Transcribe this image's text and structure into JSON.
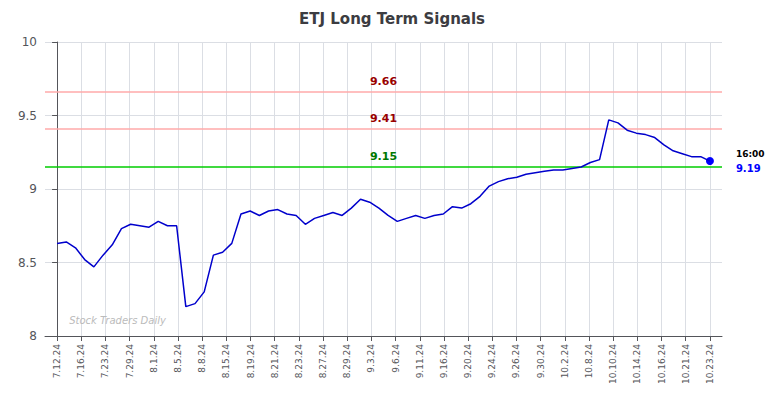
{
  "chart_data": {
    "type": "line",
    "title": "ETJ Long Term Signals",
    "color": "#0000cc",
    "grid": true,
    "x": [
      0,
      0.3803,
      0.7606,
      1.1408,
      1.5211,
      1.9014,
      2.2817,
      2.662,
      3.0423,
      3.4225,
      3.8028,
      4.1831,
      4.5634,
      4.9437,
      5.3239,
      5.7042,
      6.0845,
      6.4648,
      6.8451,
      7.2254,
      7.6056,
      7.9859,
      8.3662,
      8.7465,
      9.1268,
      9.507,
      9.8873,
      10.2676,
      10.6479,
      11.0282,
      11.4085,
      11.7887,
      12.169,
      12.5493,
      12.9296,
      13.3099,
      13.6901,
      14.0704,
      14.4507,
      14.831,
      15.2113,
      15.5915,
      15.9718,
      16.3521,
      16.7324,
      17.1127,
      17.493,
      17.8732,
      18.2535,
      18.6338,
      19.0141,
      19.3944,
      19.7746,
      20.1549,
      20.5352,
      20.9155,
      21.2958,
      21.6761,
      22.0563,
      22.4366,
      22.8169,
      23.1972,
      23.5775,
      23.9577,
      24.338,
      24.7183,
      25.0986,
      25.4789,
      25.8592,
      26.2394,
      26.6197,
      27
    ],
    "values": [
      8.63,
      8.64,
      8.6,
      8.52,
      8.47,
      8.55,
      8.62,
      8.73,
      8.76,
      8.75,
      8.74,
      8.78,
      8.75,
      8.75,
      8.2,
      8.22,
      8.3,
      8.55,
      8.57,
      8.63,
      8.83,
      8.85,
      8.82,
      8.85,
      8.86,
      8.83,
      8.82,
      8.76,
      8.8,
      8.82,
      8.84,
      8.82,
      8.87,
      8.93,
      8.91,
      8.87,
      8.82,
      8.78,
      8.8,
      8.82,
      8.8,
      8.82,
      8.83,
      8.88,
      8.87,
      8.9,
      8.95,
      9.02,
      9.05,
      9.07,
      9.08,
      9.1,
      9.11,
      9.12,
      9.13,
      9.13,
      9.14,
      9.15,
      9.18,
      9.2,
      9.47,
      9.45,
      9.4,
      9.38,
      9.37,
      9.35,
      9.3,
      9.26,
      9.24,
      9.22,
      9.22,
      9.19
    ],
    "xlim": [
      -0.5,
      27.5
    ],
    "xticks": [
      {
        "value": 0,
        "label": "7.12.24"
      },
      {
        "value": 1,
        "label": "7.16.24"
      },
      {
        "value": 2,
        "label": "7.23.24"
      },
      {
        "value": 3,
        "label": "7.29.24"
      },
      {
        "value": 4,
        "label": "8.1.24"
      },
      {
        "value": 5,
        "label": "8.5.24"
      },
      {
        "value": 6,
        "label": "8.8.24"
      },
      {
        "value": 7,
        "label": "8.15.24"
      },
      {
        "value": 8,
        "label": "8.19.24"
      },
      {
        "value": 9,
        "label": "8.21.24"
      },
      {
        "value": 10,
        "label": "8.23.24"
      },
      {
        "value": 11,
        "label": "8.27.24"
      },
      {
        "value": 12,
        "label": "8.29.24"
      },
      {
        "value": 13,
        "label": "9.3.24"
      },
      {
        "value": 14,
        "label": "9.6.24"
      },
      {
        "value": 15,
        "label": "9.11.24"
      },
      {
        "value": 16,
        "label": "9.16.24"
      },
      {
        "value": 17,
        "label": "9.20.24"
      },
      {
        "value": 18,
        "label": "9.24.24"
      },
      {
        "value": 19,
        "label": "9.26.24"
      },
      {
        "value": 20,
        "label": "9.30.24"
      },
      {
        "value": 21,
        "label": "10.2.24"
      },
      {
        "value": 22,
        "label": "10.8.24"
      },
      {
        "value": 23,
        "label": "10.10.24"
      },
      {
        "value": 24,
        "label": "10.14.24"
      },
      {
        "value": 25,
        "label": "10.16.24"
      },
      {
        "value": 26,
        "label": "10.21.24"
      },
      {
        "value": 27,
        "label": "10.23.24"
      }
    ],
    "ylim": [
      8,
      10
    ],
    "yticks": [
      8,
      8.5,
      9,
      9.5,
      10
    ],
    "hlines": [
      {
        "y": 9.15,
        "label": "9.15",
        "color": "#00cc00",
        "label_color": "#007700"
      },
      {
        "y": 9.41,
        "label": "9.41",
        "color": "#ffaaaa",
        "label_color": "#990000"
      },
      {
        "y": 9.66,
        "label": "9.66",
        "color": "#ffaaaa",
        "label_color": "#990000"
      }
    ],
    "last_point": {
      "x": 27,
      "y": 9.19,
      "color": "#0000ff",
      "label": "16:00",
      "value_label": "9.19"
    },
    "annotations": [
      {
        "text": "Stock Traders Daily",
        "x": 0.5,
        "y": 8.07,
        "color": "#bbbbbb"
      }
    ]
  }
}
